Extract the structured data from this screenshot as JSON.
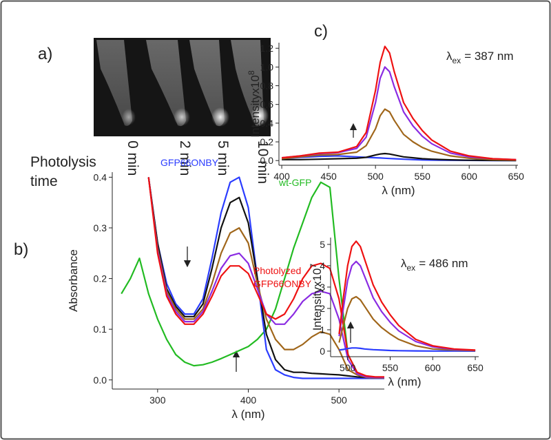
{
  "panel_labels": [
    "a)",
    "b)",
    "c)"
  ],
  "photo": {
    "times": [
      "0 min",
      "2 min",
      "5 min",
      "10 min"
    ],
    "caption": [
      "Photolysis",
      "time"
    ]
  },
  "chart_data": [
    {
      "type": "line",
      "xlabel": "λ  (nm)",
      "ylabel": "Absorbance",
      "x": [
        260,
        270,
        280,
        290,
        300,
        310,
        320,
        330,
        340,
        350,
        360,
        370,
        380,
        390,
        400,
        410,
        420,
        430,
        440,
        450,
        460,
        470,
        480,
        490,
        500,
        510,
        520,
        530,
        540,
        550
      ],
      "xlim": [
        250,
        550
      ],
      "xticks": [
        300,
        400,
        500
      ],
      "ylim": [
        -0.018,
        0.41
      ],
      "yticks": [
        {
          "value": 0,
          "label": "0.0"
        },
        0.1,
        0.2,
        0.3,
        0.4
      ],
      "series": [
        {
          "name": "wt-GFP",
          "color": "#22bb22",
          "values": [
            0.17,
            0.2,
            0.24,
            0.17,
            0.12,
            0.08,
            0.05,
            0.035,
            0.028,
            0.03,
            0.035,
            0.042,
            0.05,
            0.058,
            0.066,
            0.08,
            0.1,
            0.14,
            0.2,
            0.26,
            0.31,
            0.36,
            0.39,
            0.38,
            0.2,
            0.05,
            0.015,
            0.007,
            0.005,
            0.005
          ]
        },
        {
          "name": "GFP66ONBY",
          "color": "#2a3cff",
          "values": [
            null,
            null,
            null,
            0.4,
            0.27,
            0.19,
            0.15,
            0.13,
            0.13,
            0.16,
            0.24,
            0.33,
            0.39,
            0.4,
            0.34,
            0.2,
            0.06,
            0.02,
            0.01,
            0.005,
            0.003,
            0.003,
            0.003,
            0.003,
            0.003,
            0.003,
            0.003,
            0.003,
            0.003,
            0.003
          ]
        },
        {
          "color": "#111111",
          "values": [
            null,
            null,
            null,
            0.4,
            0.27,
            0.18,
            0.145,
            0.125,
            0.125,
            0.15,
            0.22,
            0.3,
            0.35,
            0.36,
            0.31,
            0.2,
            0.09,
            0.04,
            0.02,
            0.015,
            0.015,
            0.013,
            0.012,
            0.011,
            0.01,
            0.008,
            0.006,
            0.005,
            0.004,
            0.004
          ]
        },
        {
          "color": "#a0661a",
          "values": [
            null,
            null,
            null,
            0.4,
            0.26,
            0.175,
            0.14,
            0.12,
            0.12,
            0.14,
            0.19,
            0.25,
            0.29,
            0.3,
            0.27,
            0.19,
            0.12,
            0.08,
            0.06,
            0.06,
            0.07,
            0.085,
            0.095,
            0.09,
            0.06,
            0.02,
            0.01,
            0.005,
            0.004,
            0.004
          ]
        },
        {
          "color": "#8a2be2",
          "values": [
            null,
            null,
            null,
            0.4,
            0.255,
            0.17,
            0.135,
            0.115,
            0.115,
            0.135,
            0.175,
            0.22,
            0.245,
            0.25,
            0.23,
            0.18,
            0.13,
            0.11,
            0.11,
            0.13,
            0.155,
            0.17,
            0.175,
            0.17,
            0.12,
            0.04,
            0.012,
            0.006,
            0.005,
            0.005
          ]
        },
        {
          "name": [
            "Photolyzed",
            "GFP66ONBY"
          ],
          "color": "#ee1111",
          "values": [
            null,
            null,
            null,
            0.4,
            0.25,
            0.165,
            0.13,
            0.11,
            0.11,
            0.13,
            0.165,
            0.205,
            0.225,
            0.225,
            0.21,
            0.17,
            0.13,
            0.12,
            0.13,
            0.16,
            0.2,
            0.225,
            0.23,
            0.22,
            0.16,
            0.05,
            0.015,
            0.008,
            0.006,
            0.006
          ]
        }
      ]
    },
    {
      "type": "line",
      "xlabel": "λ  (nm)",
      "ylabel": "Intensityx10",
      "ylabel_exponent": "8",
      "annotation": {
        "symbol": "λ",
        "subscript": "ex",
        "text": "= 387 nm"
      },
      "x": [
        400,
        420,
        440,
        460,
        480,
        490,
        500,
        505,
        510,
        515,
        520,
        530,
        540,
        550,
        560,
        580,
        600,
        625,
        650
      ],
      "xlim": [
        397,
        652
      ],
      "xticks": [
        400,
        450,
        500,
        550,
        600,
        650
      ],
      "ylim": [
        -0.05,
        1.26
      ],
      "yticks": [
        {
          "value": 0,
          "label": "0.0"
        },
        0.2,
        0.4,
        0.6,
        0.8,
        {
          "value": 1,
          "label": "1.0"
        },
        1.2
      ],
      "series": [
        {
          "color": "#2a3cff",
          "values": [
            0.02,
            0.035,
            0.045,
            0.05,
            0.04,
            0.035,
            0.03,
            0.028,
            0.025,
            0.022,
            0.02,
            0.015,
            0.01,
            0.007,
            0.005,
            0.003,
            0.002,
            0.001,
            0.001
          ]
        },
        {
          "color": "#111111",
          "values": [
            0.01,
            0.01,
            0.015,
            0.02,
            0.025,
            0.035,
            0.06,
            0.07,
            0.075,
            0.07,
            0.06,
            0.04,
            0.03,
            0.02,
            0.015,
            0.008,
            0.004,
            0.002,
            0.001
          ]
        },
        {
          "color": "#a0661a",
          "values": [
            0.02,
            0.04,
            0.06,
            0.065,
            0.09,
            0.16,
            0.34,
            0.48,
            0.55,
            0.52,
            0.43,
            0.28,
            0.2,
            0.14,
            0.1,
            0.05,
            0.025,
            0.01,
            0.005
          ]
        },
        {
          "color": "#8a2be2",
          "values": [
            0.03,
            0.05,
            0.075,
            0.085,
            0.13,
            0.25,
            0.62,
            0.88,
            1.0,
            0.95,
            0.79,
            0.52,
            0.37,
            0.26,
            0.18,
            0.08,
            0.04,
            0.02,
            0.01
          ]
        },
        {
          "color": "#ee1111",
          "values": [
            0.03,
            0.05,
            0.08,
            0.09,
            0.15,
            0.3,
            0.75,
            1.05,
            1.22,
            1.15,
            0.95,
            0.62,
            0.45,
            0.32,
            0.22,
            0.1,
            0.05,
            0.02,
            0.01
          ]
        }
      ]
    },
    {
      "type": "line",
      "xlabel": "λ  (nm)",
      "ylabel": "Intensityx10",
      "ylabel_exponent": "7",
      "annotation": {
        "symbol": "λ",
        "subscript": "ex",
        "text": "= 486 nm"
      },
      "x": [
        490,
        495,
        500,
        505,
        510,
        515,
        520,
        530,
        540,
        550,
        560,
        580,
        600,
        625,
        650
      ],
      "xlim": [
        480,
        654
      ],
      "xticks": [
        500,
        550,
        600,
        650
      ],
      "ylim": [
        -0.26,
        5.32
      ],
      "yticks": [
        0,
        1,
        2,
        3,
        4,
        5
      ],
      "series": [
        {
          "color": "#2a3cff",
          "values": [
            0.05,
            0.08,
            0.12,
            0.15,
            0.15,
            0.13,
            0.1,
            0.07,
            0.05,
            0.03,
            0.02,
            0.01,
            0.005,
            0.003,
            0.002
          ]
        },
        {
          "color": "#a0661a",
          "values": [
            0.4,
            1.2,
            2.0,
            2.45,
            2.55,
            2.4,
            2.1,
            1.5,
            1.1,
            0.8,
            0.55,
            0.25,
            0.1,
            0.05,
            0.02
          ]
        },
        {
          "color": "#8a2be2",
          "values": [
            0.7,
            2.0,
            3.3,
            4.0,
            4.2,
            4.0,
            3.5,
            2.5,
            1.85,
            1.35,
            0.95,
            0.45,
            0.2,
            0.08,
            0.04
          ]
        },
        {
          "color": "#ee1111",
          "values": [
            0.8,
            2.5,
            4.0,
            4.9,
            5.15,
            4.9,
            4.3,
            3.1,
            2.3,
            1.7,
            1.2,
            0.55,
            0.25,
            0.1,
            0.05
          ]
        }
      ]
    }
  ]
}
